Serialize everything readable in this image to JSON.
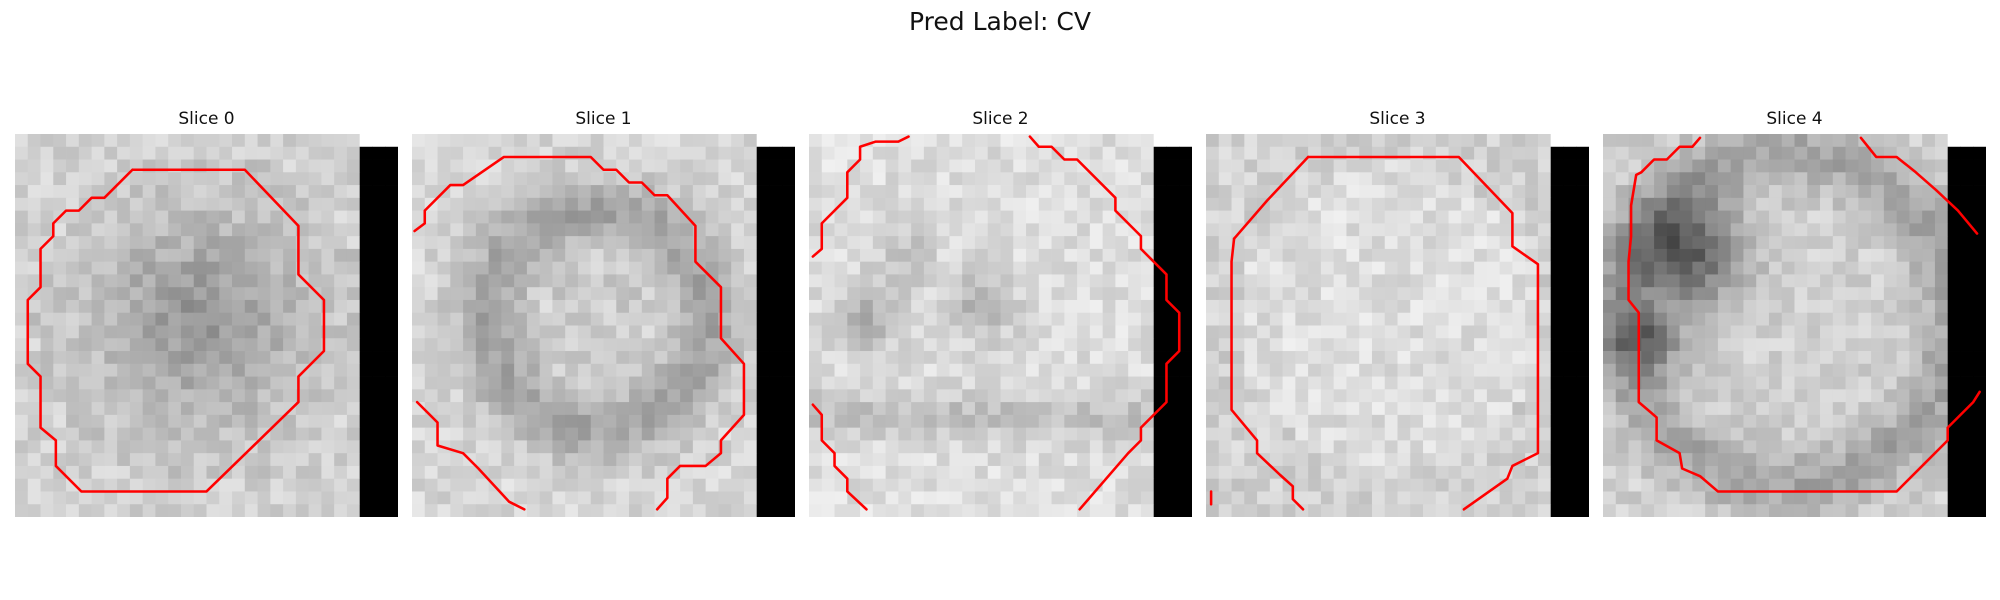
{
  "figure": {
    "suptitle": "Pred Label: CV",
    "contour_color": "#ff0000",
    "mask_color": "#000000"
  },
  "slices": [
    {
      "title": "Slice 0",
      "seed": 11,
      "style": "dark-center"
    },
    {
      "title": "Slice 1",
      "seed": 23,
      "style": "ring"
    },
    {
      "title": "Slice 2",
      "seed": 37,
      "style": "spots"
    },
    {
      "title": "Slice 3",
      "seed": 53,
      "style": "light"
    },
    {
      "title": "Slice 4",
      "seed": 71,
      "style": "dark-left"
    }
  ]
}
